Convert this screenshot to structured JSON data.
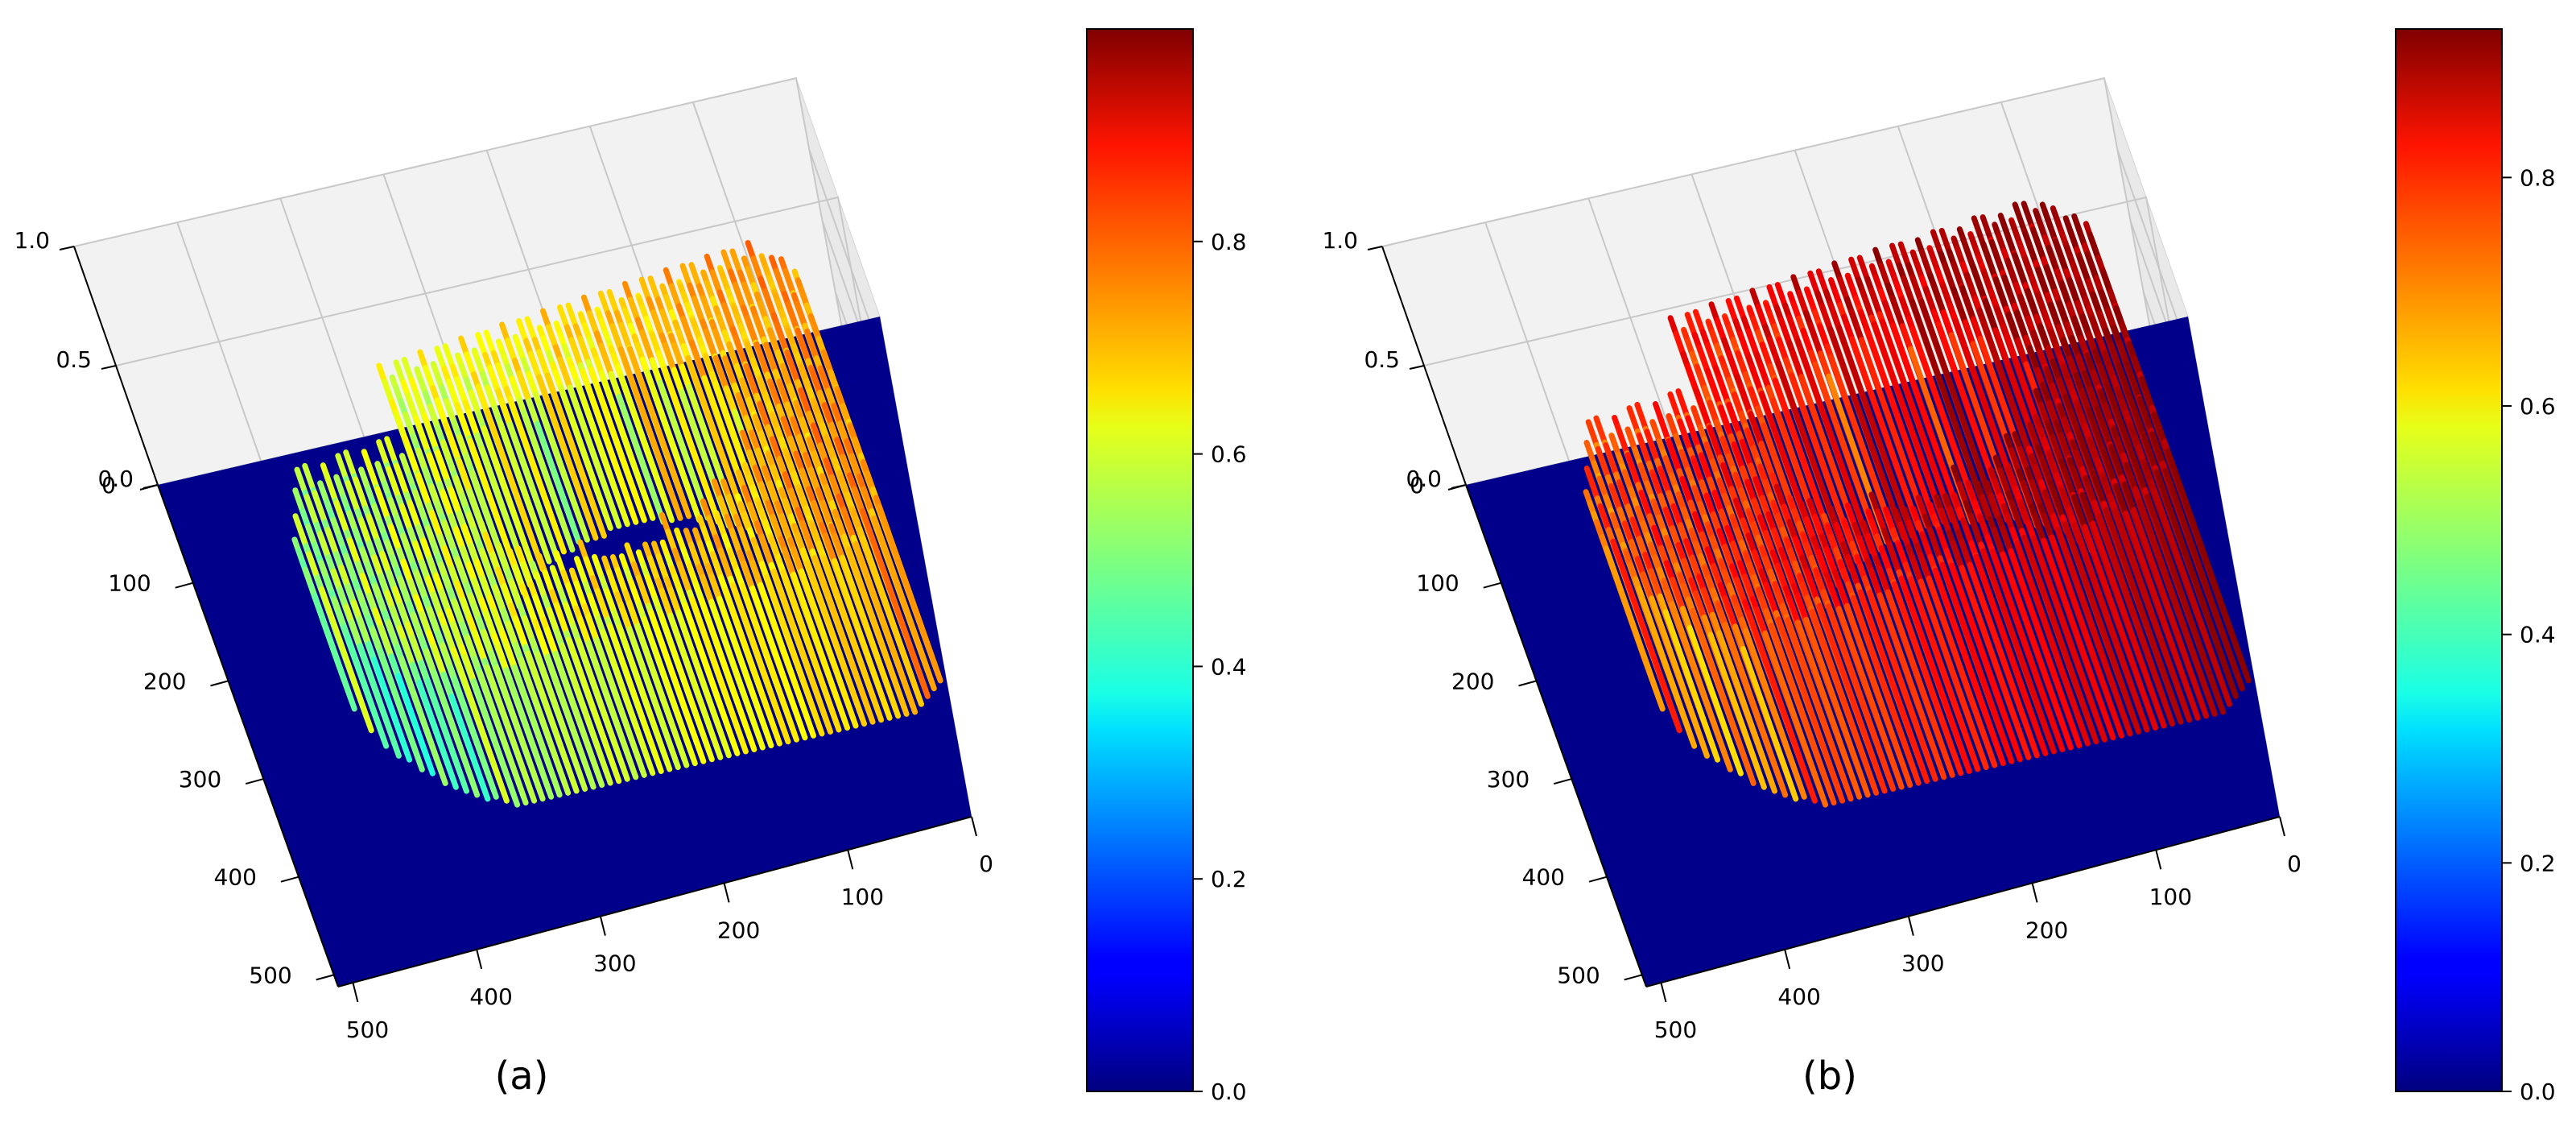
{
  "chart_data": [
    {
      "type": "surface3d",
      "panel_label": "(a)",
      "colormap": "jet",
      "x_ticks": [
        "0",
        "100",
        "200",
        "300",
        "400",
        "500"
      ],
      "y_ticks": [
        "0",
        "100",
        "200",
        "300",
        "400",
        "500"
      ],
      "z_ticks": [
        "0.0",
        "0.5",
        "1.0"
      ],
      "xlim": [
        0,
        512
      ],
      "ylim": [
        0,
        512
      ],
      "zlim": [
        0,
        1.0
      ],
      "grid": true,
      "colorbar": {
        "range": [
          0.0,
          1.0
        ],
        "ticks": [
          "0.0",
          "0.2",
          "0.4",
          "0.6",
          "0.8"
        ],
        "tick_values": [
          0.0,
          0.2,
          0.4,
          0.6,
          0.8
        ]
      },
      "surface_peak": 0.98
    },
    {
      "type": "surface3d",
      "panel_label": "(b)",
      "colormap": "jet",
      "x_ticks": [
        "0",
        "100",
        "200",
        "300",
        "400",
        "500"
      ],
      "y_ticks": [
        "0",
        "100",
        "200",
        "300",
        "400",
        "500"
      ],
      "z_ticks": [
        "0.0",
        "0.5",
        "1.0"
      ],
      "xlim": [
        0,
        512
      ],
      "ylim": [
        0,
        512
      ],
      "zlim": [
        0,
        1.0
      ],
      "grid": true,
      "colorbar": {
        "range": [
          0.0,
          0.93
        ],
        "ticks": [
          "0.0",
          "0.2",
          "0.4",
          "0.6",
          "0.8"
        ],
        "tick_values": [
          0.0,
          0.2,
          0.4,
          0.6,
          0.8
        ]
      },
      "surface_peak": 0.92
    }
  ],
  "colors": {
    "floor": "#00008b",
    "pane": "#f2f2f2",
    "grid": "#c8c8c8"
  }
}
